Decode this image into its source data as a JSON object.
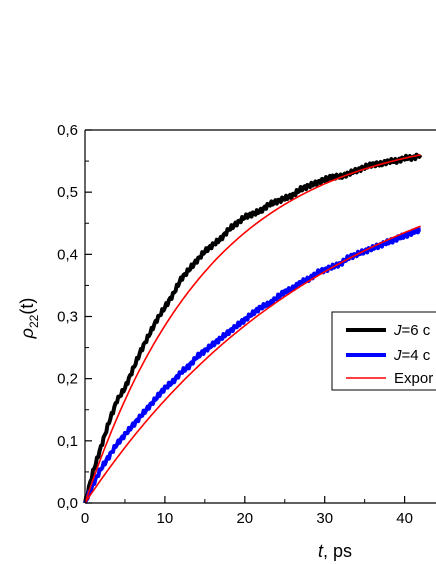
{
  "chart_data": {
    "type": "line",
    "title": "",
    "xlabel_italic": "t",
    "xlabel_rest": ", ps",
    "ylabel_main": "ρ",
    "ylabel_sub": "22",
    "ylabel_rest": "(t)",
    "xlim": [
      0,
      42
    ],
    "ylim": [
      0,
      0.6
    ],
    "x_ticks": [
      0,
      10,
      20,
      30,
      40
    ],
    "x_tick_labels": [
      "0",
      "10",
      "20",
      "30",
      "40"
    ],
    "y_ticks": [
      0,
      0.1,
      0.2,
      0.3,
      0.4,
      0.5,
      0.6
    ],
    "y_tick_labels": [
      "0,0",
      "0,1",
      "0,2",
      "0,3",
      "0,4",
      "0,5",
      "0,6"
    ],
    "grid": false,
    "legend_position": "right",
    "series": [
      {
        "name": "J=6 c",
        "color": "#000000",
        "x": [
          0,
          1,
          2,
          3,
          4,
          5,
          6,
          7,
          8,
          9,
          10,
          11,
          12,
          13,
          14,
          15,
          16,
          17,
          18,
          19,
          20,
          21,
          22,
          23,
          24,
          25,
          26,
          27,
          28,
          29,
          30,
          31,
          32,
          33,
          34,
          35,
          36,
          37,
          38,
          39,
          40,
          41,
          42
        ],
        "values": [
          0.0,
          0.05,
          0.09,
          0.13,
          0.165,
          0.185,
          0.215,
          0.245,
          0.27,
          0.295,
          0.315,
          0.335,
          0.36,
          0.375,
          0.39,
          0.405,
          0.415,
          0.425,
          0.44,
          0.45,
          0.46,
          0.465,
          0.47,
          0.48,
          0.485,
          0.49,
          0.495,
          0.505,
          0.51,
          0.515,
          0.52,
          0.525,
          0.525,
          0.53,
          0.535,
          0.54,
          0.545,
          0.545,
          0.55,
          0.55,
          0.555,
          0.555,
          0.56
        ]
      },
      {
        "name": "J=4 c",
        "color": "#0000ff",
        "x": [
          0,
          1,
          2,
          3,
          4,
          5,
          6,
          7,
          8,
          9,
          10,
          11,
          12,
          13,
          14,
          15,
          16,
          17,
          18,
          19,
          20,
          21,
          22,
          23,
          24,
          25,
          26,
          27,
          28,
          29,
          30,
          31,
          32,
          33,
          34,
          35,
          36,
          37,
          38,
          39,
          40,
          41,
          42
        ],
        "values": [
          0.0,
          0.03,
          0.055,
          0.075,
          0.095,
          0.11,
          0.125,
          0.14,
          0.155,
          0.17,
          0.185,
          0.195,
          0.21,
          0.22,
          0.235,
          0.245,
          0.255,
          0.265,
          0.275,
          0.285,
          0.295,
          0.305,
          0.315,
          0.32,
          0.33,
          0.34,
          0.345,
          0.355,
          0.36,
          0.37,
          0.375,
          0.38,
          0.385,
          0.395,
          0.4,
          0.405,
          0.41,
          0.415,
          0.42,
          0.425,
          0.43,
          0.435,
          0.44
        ]
      }
    ],
    "fits": [
      {
        "a": 0.6,
        "tau": 15.5,
        "color": "#ff0000"
      },
      {
        "a": 0.6,
        "tau": 31.0,
        "color": "#ff0000"
      }
    ],
    "legend": {
      "entries": [
        {
          "label_prefix": "J",
          "label_suffix": "=6 c",
          "color": "#000000",
          "weight": "thick"
        },
        {
          "label_prefix": "J",
          "label_suffix": "=4 c",
          "color": "#0000ff",
          "weight": "thick"
        },
        {
          "label_prefix": "",
          "label_suffix": "Expor",
          "color": "#ff0000",
          "weight": "thin"
        }
      ]
    }
  }
}
